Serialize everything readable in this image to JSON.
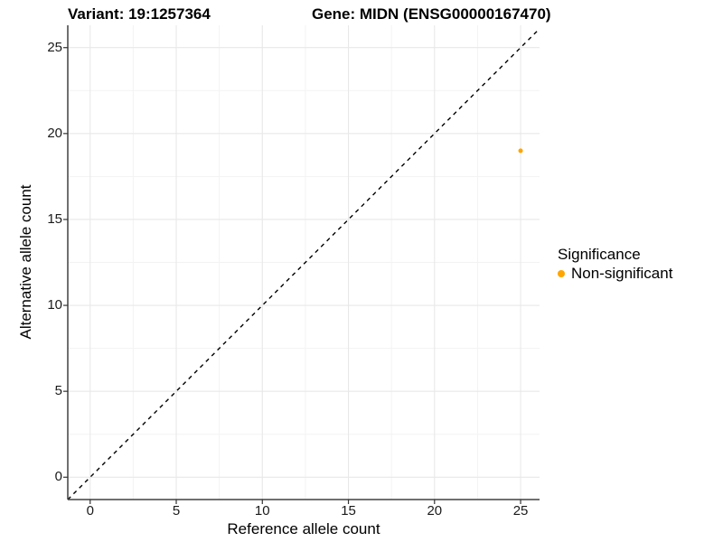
{
  "figure": {
    "title_left": "Variant: 19:1257364",
    "title_right": "Gene: MIDN (ENSG00000167470)"
  },
  "chart_data": {
    "type": "scatter",
    "xlabel": "Reference allele count",
    "ylabel": "Alternative allele count",
    "xticks": [
      0,
      5,
      10,
      15,
      20,
      25
    ],
    "yticks": [
      0,
      5,
      10,
      15,
      20,
      25
    ],
    "xlim": [
      -1.3,
      26.1
    ],
    "ylim": [
      -1.3,
      26.3
    ],
    "grid": {
      "major": true,
      "minor": true
    },
    "identity_line": {
      "style": "dashed",
      "color": "#000000",
      "from": [
        -1.3,
        -1.3
      ],
      "to": [
        26.1,
        26.1
      ]
    },
    "series": [
      {
        "name": "Non-significant",
        "color": "#FFA500",
        "points": [
          {
            "x": 25,
            "y": 19
          }
        ]
      }
    ],
    "legend": {
      "title": "Significance",
      "position": "right",
      "items": [
        {
          "label": "Non-significant",
          "color": "#FFA500"
        }
      ]
    }
  },
  "colors": {
    "background": "#FFFFFF",
    "panel_background": "#FFFFFF",
    "axis_line": "#404040",
    "tick_mark": "#333333",
    "grid_major": "#E8E8E8",
    "grid_minor": "#F3F3F3",
    "tick_label": "#1A1A1A",
    "identity_line": "#000000",
    "point": "#FFA500"
  }
}
